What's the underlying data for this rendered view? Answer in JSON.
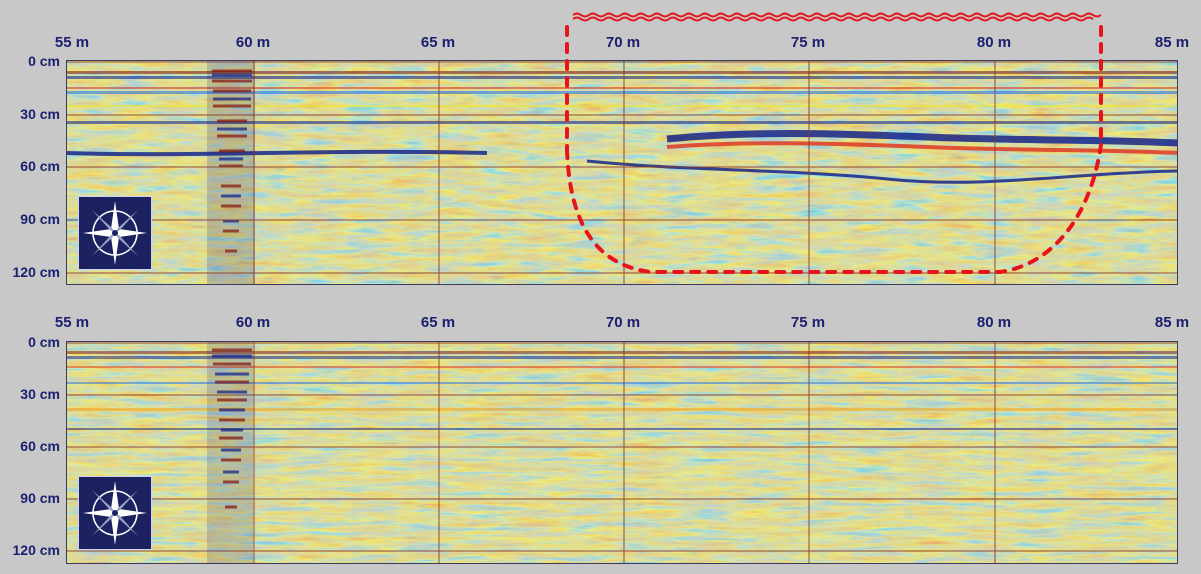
{
  "top_panel": {
    "x_ticks": [
      "55 m",
      "60 m",
      "65 m",
      "70 m",
      "75 m",
      "80 m",
      "85 m"
    ],
    "y_ticks": [
      "0 cm",
      "30 cm",
      "60 cm",
      "90 cm",
      "120 cm"
    ],
    "compass_icon": "compass-rose-icon",
    "anomaly_outline_color": "#e8141c"
  },
  "bottom_panel": {
    "x_ticks": [
      "55 m",
      "60 m",
      "65 m",
      "70 m",
      "75 m",
      "80 m",
      "85 m"
    ],
    "y_ticks": [
      "0 cm",
      "30 cm",
      "60 cm",
      "90 cm",
      "120 cm"
    ],
    "compass_icon": "compass-rose-icon"
  },
  "colors": {
    "background": "#c8c8c8",
    "label_text": "#1a2070",
    "radargram_palette": [
      "#0a1a8a",
      "#1e6ee8",
      "#23c0f0",
      "#f0e820",
      "#f5a010",
      "#e0301a",
      "#7a1010"
    ],
    "grid_line": "#8a3a2a"
  }
}
